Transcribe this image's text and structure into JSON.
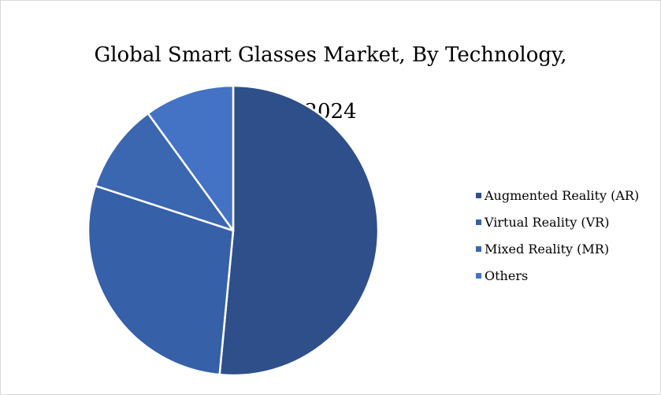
{
  "chart_data": {
    "type": "pie",
    "title_line1": "Global Smart Glasses Market, By Technology,",
    "title_line2": "2024",
    "legend_position": "right",
    "categories": [
      "Augmented Reality (AR)",
      "Virtual Reality (VR)",
      "Mixed Reality (MR)",
      "Others"
    ],
    "values": [
      51.5,
      28.5,
      10,
      10
    ],
    "colors": [
      "#2F4F8A",
      "#3660A8",
      "#3B66B0",
      "#4472C4"
    ]
  }
}
